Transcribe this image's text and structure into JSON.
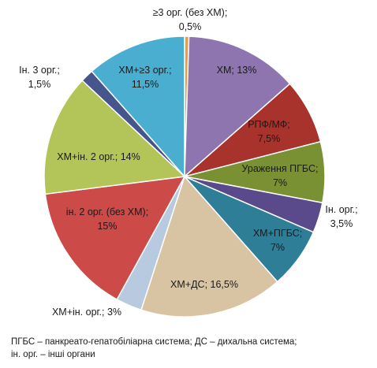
{
  "chart_data": {
    "type": "pie",
    "start_angle_deg": -90,
    "direction": "clockwise",
    "slices": [
      {
        "label_lines": [
          "≥3 орг. (без ХМ);",
          "0,5%"
        ],
        "category": "≥3 орг. (без ХМ)",
        "value": 0.5,
        "color": "#F39B3A"
      },
      {
        "label_lines": [
          "ХМ; 13%"
        ],
        "category": "ХМ",
        "value": 13,
        "color": "#8E75B0"
      },
      {
        "label_lines": [
          "РПФ/МФ;",
          "7,5%"
        ],
        "category": "РПФ/МФ",
        "value": 7.5,
        "color": "#A8332C"
      },
      {
        "label_lines": [
          "Ураження ПГБС;",
          "7%"
        ],
        "category": "Ураження ПГБС",
        "value": 7,
        "color": "#7A9133"
      },
      {
        "label_lines": [
          "Ін. орг.;",
          "3,5%"
        ],
        "category": "Ін. орг.",
        "value": 3.5,
        "color": "#5A4A8C"
      },
      {
        "label_lines": [
          "ХМ+ПГБС;",
          "7%"
        ],
        "category": "ХМ+ПГБС",
        "value": 7,
        "color": "#2F7E98"
      },
      {
        "label_lines": [
          "ХМ+ДС; 16,5%"
        ],
        "category": "ХМ+ДС",
        "value": 16.5,
        "color": "#D8C3A2"
      },
      {
        "label_lines": [
          "ХМ+ін. орг.; 3%"
        ],
        "category": "ХМ+ін. орг.",
        "value": 3,
        "color": "#B7CAE0"
      },
      {
        "label_lines": [
          "ін. 2 орг. (без ХМ);",
          "15%"
        ],
        "category": "ін. 2 орг. (без ХМ)",
        "value": 15,
        "color": "#CC4A47"
      },
      {
        "label_lines": [
          "ХМ+ін. 2 орг.; 14%"
        ],
        "category": "ХМ+ін. 2 орг.",
        "value": 14,
        "color": "#B3C558"
      },
      {
        "label_lines": [
          "Ін. 3 орг.;",
          "1,5%"
        ],
        "category": "Ін. 3 орг.",
        "value": 1.5,
        "color": "#46558C"
      },
      {
        "label_lines": [
          "ХМ+≥3 орг.;",
          "11,5%"
        ],
        "category": "ХМ+≥3 орг.",
        "value": 11.5,
        "color": "#4AAED0"
      }
    ]
  },
  "footnote": {
    "line1": "ПГБС – панкреато-гепатобіліарна система; ДС – дихальна система;",
    "line2": "ін. орг. – інші органи"
  }
}
